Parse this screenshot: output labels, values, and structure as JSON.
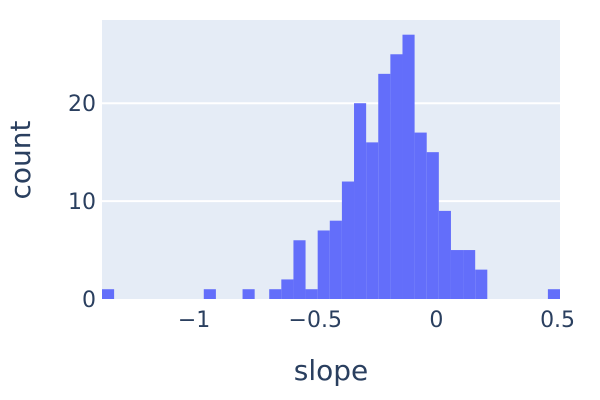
{
  "chart_data": {
    "type": "bar",
    "title": "",
    "xlabel": "slope",
    "ylabel": "count",
    "xlim": [
      -1.38,
      0.51
    ],
    "ylim": [
      0,
      28.5
    ],
    "bin_width": 0.05,
    "x_ticks": [
      {
        "value": -1,
        "label": "−1"
      },
      {
        "value": -0.5,
        "label": "−0.5"
      },
      {
        "value": 0,
        "label": "0"
      },
      {
        "value": 0.5,
        "label": "0.5"
      }
    ],
    "y_ticks": [
      {
        "value": 0,
        "label": "0"
      },
      {
        "value": 10,
        "label": "10"
      },
      {
        "value": 20,
        "label": "20"
      }
    ],
    "grid": true,
    "bar_color": "#636efa",
    "plot_bgcolor": "#e5ecf6",
    "text_color": "#2a3f5f",
    "bins": [
      {
        "x0": -1.38,
        "x1": -1.33,
        "count": 1
      },
      {
        "x0": -0.96,
        "x1": -0.91,
        "count": 1
      },
      {
        "x0": -0.8,
        "x1": -0.75,
        "count": 1
      },
      {
        "x0": -0.69,
        "x1": -0.64,
        "count": 1
      },
      {
        "x0": -0.64,
        "x1": -0.59,
        "count": 2
      },
      {
        "x0": -0.59,
        "x1": -0.54,
        "count": 6
      },
      {
        "x0": -0.54,
        "x1": -0.49,
        "count": 1
      },
      {
        "x0": -0.49,
        "x1": -0.44,
        "count": 7
      },
      {
        "x0": -0.44,
        "x1": -0.39,
        "count": 8
      },
      {
        "x0": -0.39,
        "x1": -0.34,
        "count": 12
      },
      {
        "x0": -0.34,
        "x1": -0.29,
        "count": 20
      },
      {
        "x0": -0.29,
        "x1": -0.24,
        "count": 16
      },
      {
        "x0": -0.24,
        "x1": -0.19,
        "count": 23
      },
      {
        "x0": -0.19,
        "x1": -0.14,
        "count": 25
      },
      {
        "x0": -0.14,
        "x1": -0.09,
        "count": 27
      },
      {
        "x0": -0.09,
        "x1": -0.04,
        "count": 17
      },
      {
        "x0": -0.04,
        "x1": 0.01,
        "count": 15
      },
      {
        "x0": 0.01,
        "x1": 0.06,
        "count": 9
      },
      {
        "x0": 0.06,
        "x1": 0.11,
        "count": 5
      },
      {
        "x0": 0.11,
        "x1": 0.16,
        "count": 5
      },
      {
        "x0": 0.16,
        "x1": 0.21,
        "count": 3
      },
      {
        "x0": 0.46,
        "x1": 0.51,
        "count": 1
      }
    ]
  }
}
